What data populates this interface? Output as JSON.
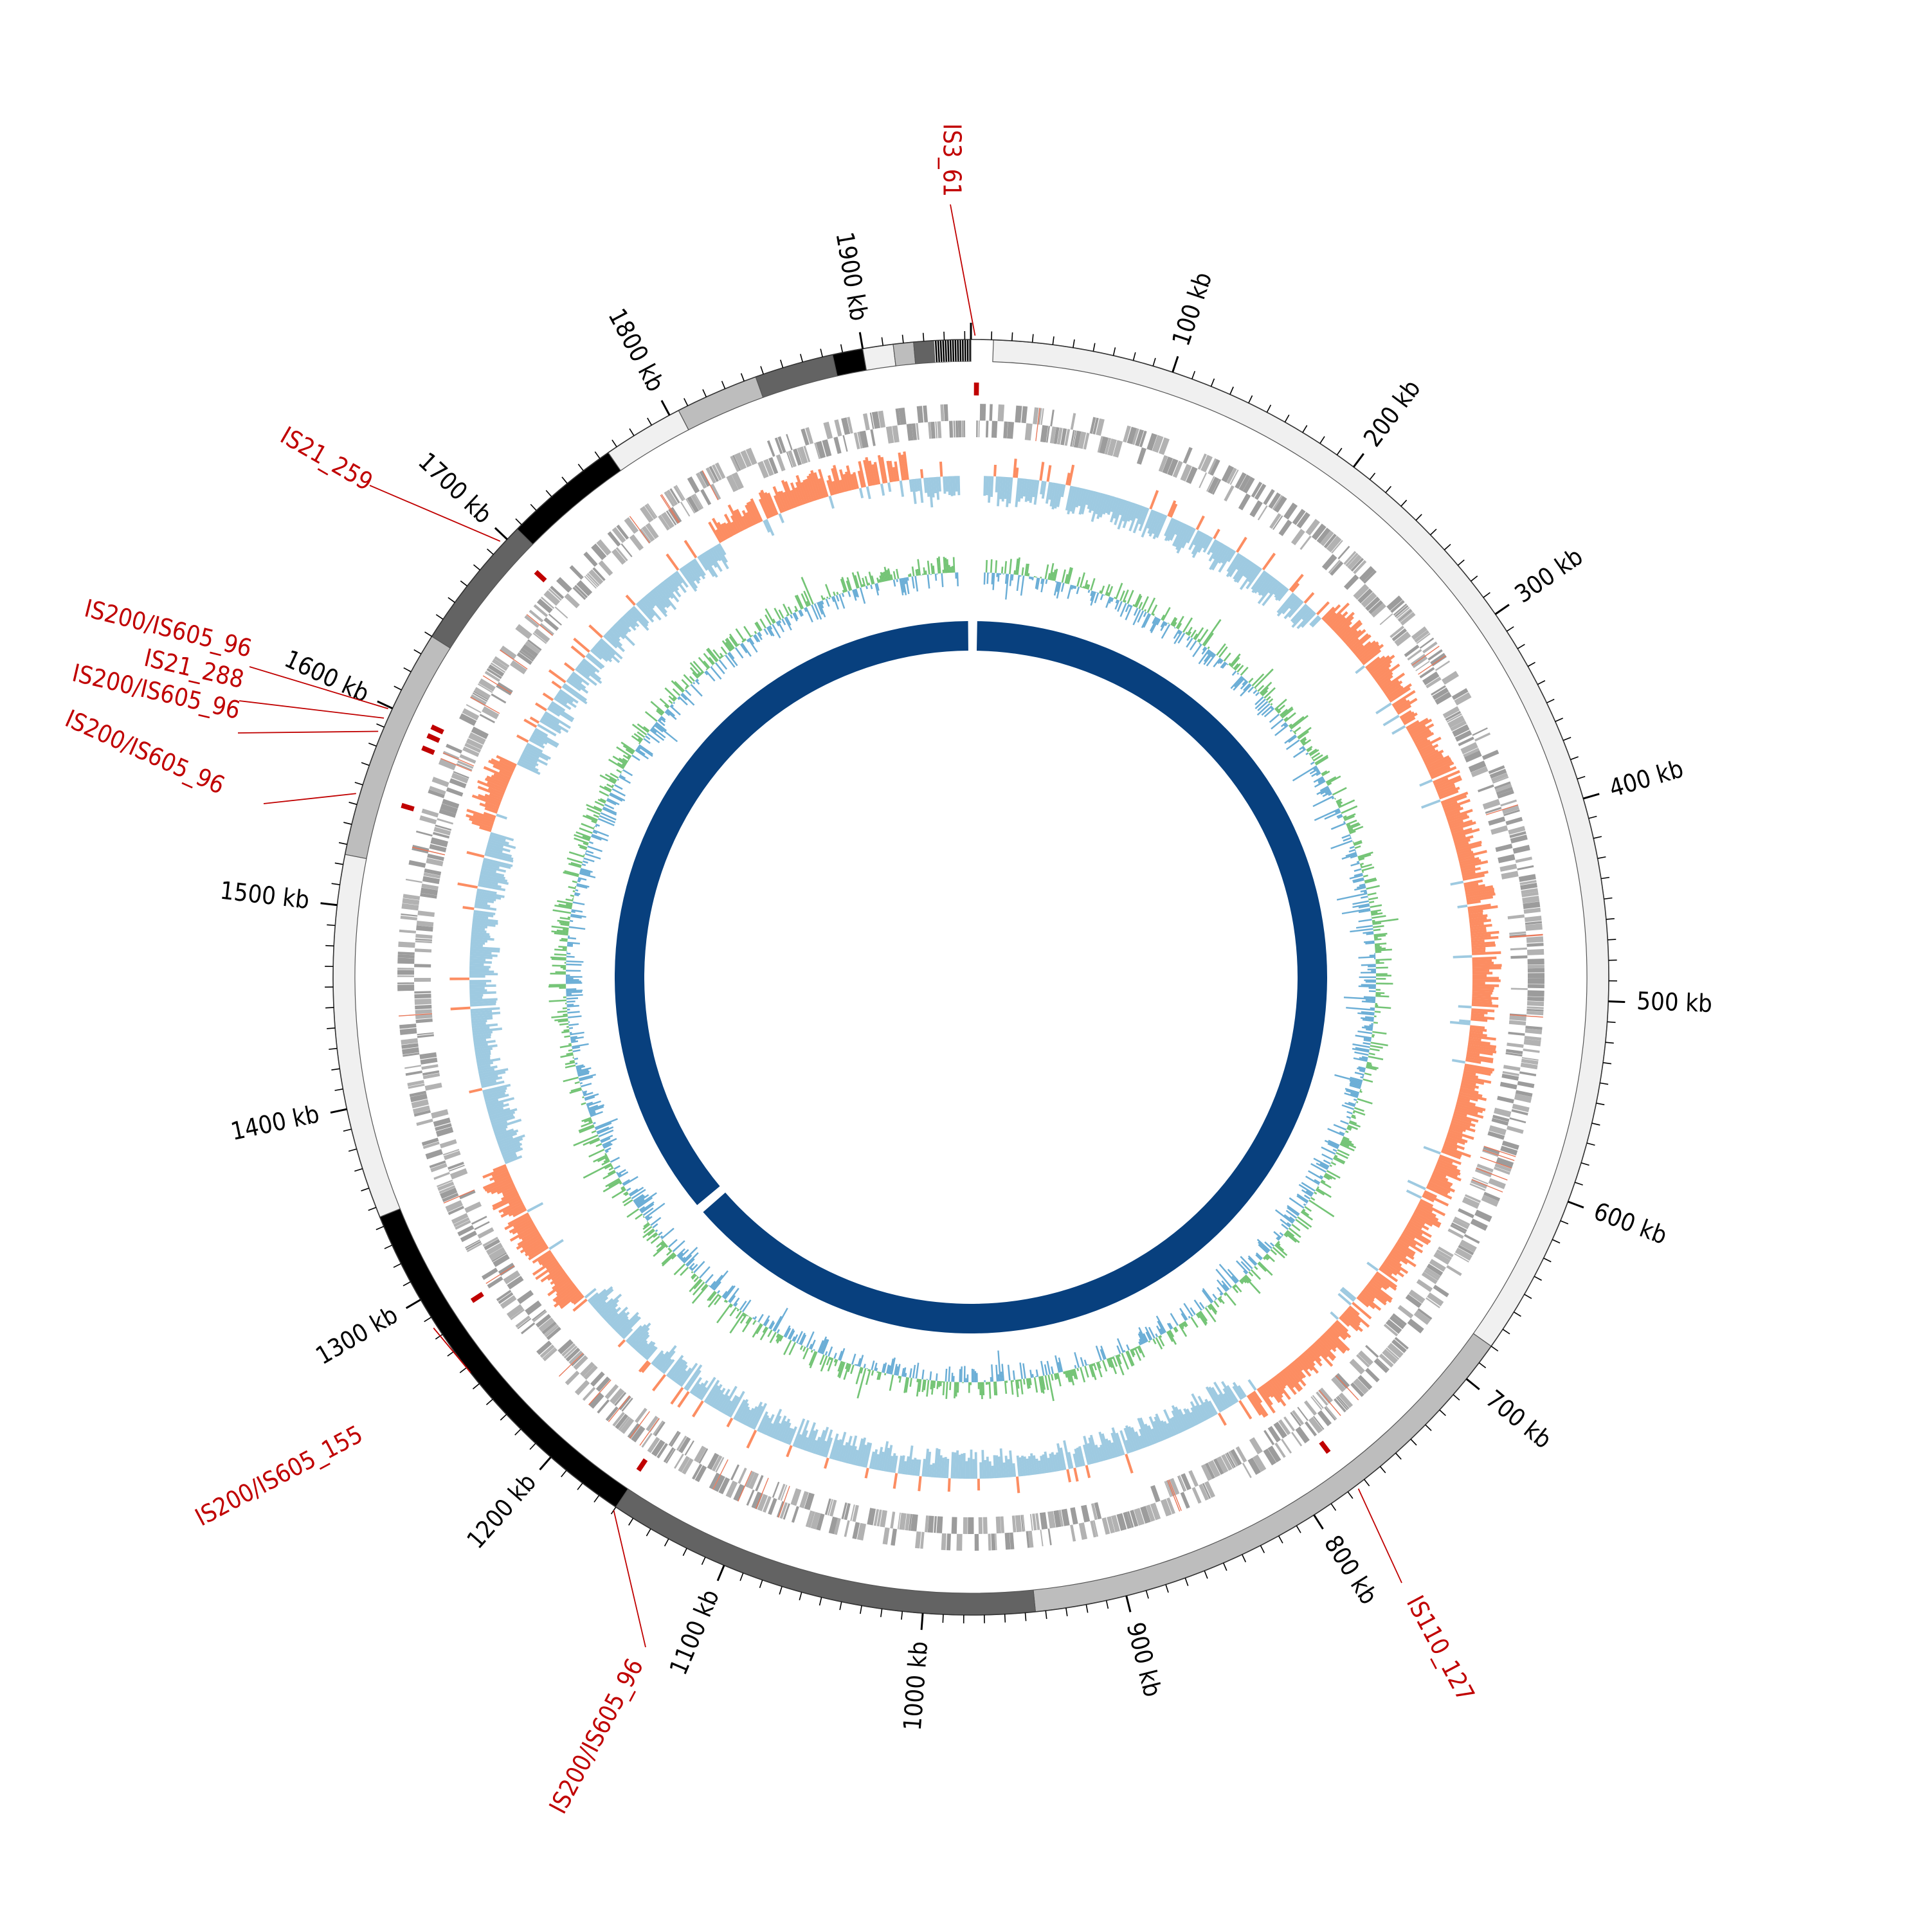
{
  "genome": {
    "length_kb": 1953,
    "ticks_kb": [
      100,
      200,
      300,
      400,
      500,
      600,
      700,
      800,
      900,
      1000,
      1100,
      1200,
      1300,
      1400,
      1500,
      1600,
      1700,
      1800,
      1900
    ],
    "tick_unit": "kb"
  },
  "contigs": {
    "colors": [
      "#f0f0f0",
      "#bdbdbd",
      "#636363",
      "#000000"
    ],
    "segments_kb": [
      [
        11,
        680,
        "#f0f0f0"
      ],
      [
        680,
        945,
        "#bdbdbd"
      ],
      [
        945,
        1160,
        "#636363"
      ],
      [
        1160,
        1345,
        "#000000"
      ],
      [
        1345,
        1525,
        "#f0f0f0"
      ],
      [
        1525,
        1640,
        "#bdbdbd"
      ],
      [
        1640,
        1707,
        "#636363"
      ],
      [
        1707,
        1765,
        "#000000"
      ],
      [
        1765,
        1805,
        "#f0f0f0"
      ],
      [
        1805,
        1846,
        "#bdbdbd"
      ],
      [
        1846,
        1885,
        "#636363"
      ],
      [
        1885,
        1900,
        "#000000"
      ],
      [
        1900,
        1915,
        "#f0f0f0"
      ],
      [
        1915,
        1925,
        "#bdbdbd"
      ],
      [
        1925,
        1935,
        "#636363"
      ],
      [
        1935,
        1953,
        "#000000"
      ]
    ]
  },
  "insertion_sequences": [
    {
      "name": "IS3_61",
      "position_kb": 2
    },
    {
      "name": "IS110_127",
      "position_kb": 775
    },
    {
      "name": "IS200/IS605_96",
      "position_kb": 1160
    },
    {
      "name": "IS200/IS605_155",
      "position_kb": 1285
    },
    {
      "name": "IS200/IS605_96",
      "position_kb": 1555
    },
    {
      "name": "IS200/IS605_96",
      "position_kb": 1587
    },
    {
      "name": "IS21_288",
      "position_kb": 1594
    },
    {
      "name": "IS200/IS605_96",
      "position_kb": 1599
    },
    {
      "name": "IS21_259",
      "position_kb": 1697
    }
  ],
  "colors": {
    "is_marker": "#c00000",
    "gc_positive": "#fc8d62",
    "gc_negative": "#9ecae1",
    "skew_positive": "#74c476",
    "skew_negative": "#6baed6",
    "inner_ring": "#08407e",
    "genes": "#a0a0a0"
  },
  "inner_ring_gaps_kb": [
    1.5,
    1245
  ]
}
